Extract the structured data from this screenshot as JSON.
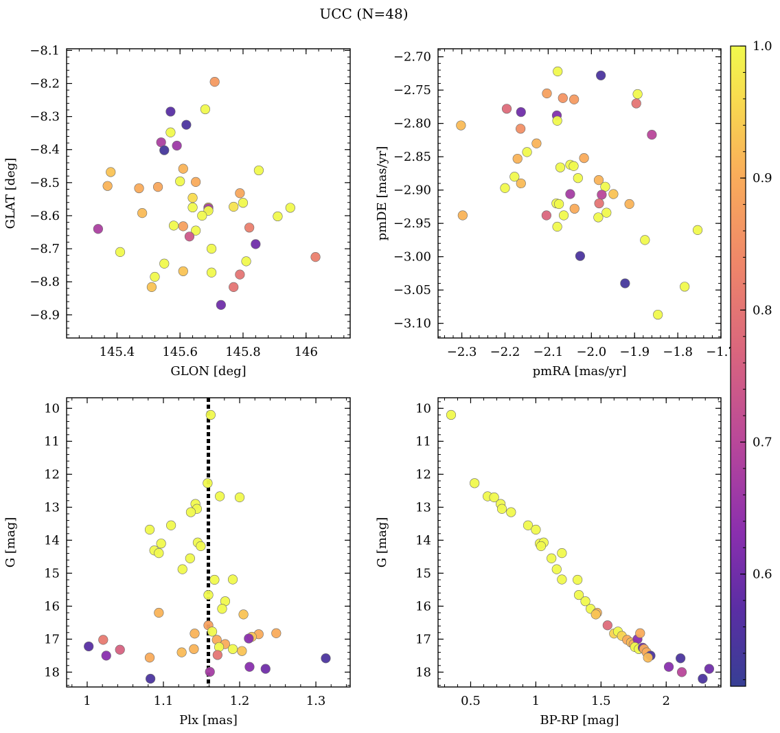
{
  "title": "UCC (N=48)",
  "chart_data": [
    {
      "type": "scatter",
      "xlabel": "GLON [deg]",
      "ylabel": "GLAT [deg]",
      "xlim": [
        145.24,
        146.14
      ],
      "ylim": [
        -8.97,
        -8.095
      ],
      "xticks": [
        145.4,
        145.6,
        145.8,
        146.0
      ],
      "yticks": [
        -8.9,
        -8.8,
        -8.7,
        -8.6,
        -8.5,
        -8.4,
        -8.3,
        -8.2,
        -8.1
      ],
      "points": [
        [
          145.71,
          -8.195,
          0.87
        ],
        [
          145.57,
          -8.285,
          0.57
        ],
        [
          145.62,
          -8.325,
          0.55
        ],
        [
          145.68,
          -8.278,
          1.0
        ],
        [
          145.57,
          -8.348,
          1.0
        ],
        [
          145.54,
          -8.378,
          0.68
        ],
        [
          145.59,
          -8.388,
          0.66
        ],
        [
          145.55,
          -8.402,
          0.54
        ],
        [
          145.38,
          -8.468,
          0.93
        ],
        [
          145.61,
          -8.458,
          0.91
        ],
        [
          145.85,
          -8.463,
          1.0
        ],
        [
          145.37,
          -8.51,
          0.91
        ],
        [
          145.47,
          -8.517,
          0.9
        ],
        [
          145.53,
          -8.513,
          0.89
        ],
        [
          145.6,
          -8.496,
          1.0
        ],
        [
          145.65,
          -8.498,
          0.9
        ],
        [
          145.79,
          -8.532,
          0.89
        ],
        [
          145.64,
          -8.546,
          0.96
        ],
        [
          145.48,
          -8.592,
          0.92
        ],
        [
          145.64,
          -8.575,
          1.0
        ],
        [
          145.69,
          -8.575,
          0.92
        ],
        [
          145.69,
          -8.578,
          0.67
        ],
        [
          145.69,
          -8.585,
          1.0
        ],
        [
          145.67,
          -8.6,
          1.0
        ],
        [
          145.77,
          -8.573,
          0.97
        ],
        [
          145.8,
          -8.561,
          1.0
        ],
        [
          145.95,
          -8.576,
          1.0
        ],
        [
          145.91,
          -8.602,
          1.0
        ],
        [
          145.34,
          -8.64,
          0.68
        ],
        [
          145.58,
          -8.63,
          1.0
        ],
        [
          145.61,
          -8.632,
          0.88
        ],
        [
          145.65,
          -8.645,
          1.0
        ],
        [
          145.63,
          -8.663,
          0.74
        ],
        [
          145.82,
          -8.636,
          0.82
        ],
        [
          145.41,
          -8.71,
          1.0
        ],
        [
          145.7,
          -8.7,
          1.0
        ],
        [
          145.84,
          -8.686,
          0.6
        ],
        [
          146.03,
          -8.725,
          0.82
        ],
        [
          145.55,
          -8.745,
          1.0
        ],
        [
          145.61,
          -8.768,
          0.93
        ],
        [
          145.7,
          -8.772,
          1.0
        ],
        [
          145.81,
          -8.738,
          1.0
        ],
        [
          145.79,
          -8.778,
          0.8
        ],
        [
          145.52,
          -8.785,
          1.0
        ],
        [
          145.51,
          -8.816,
          0.93
        ],
        [
          145.77,
          -8.816,
          0.8
        ],
        [
          145.73,
          -8.87,
          0.6
        ]
      ]
    },
    {
      "type": "scatter",
      "xlabel": "pmRA [mas/yr]",
      "ylabel": "pmDE [mas/yr]",
      "xlim": [
        -2.355,
        -1.7
      ],
      "ylim": [
        -3.122,
        -2.688
      ],
      "xticks": [
        -2.3,
        -2.2,
        -2.1,
        -2.0,
        -1.9,
        -1.8,
        -1.7
      ],
      "xtick_labels": [
        "−2.3",
        "−2.2",
        "−2.1",
        "−2.0",
        "−1.9",
        "−1.8",
        "−1.7"
      ],
      "yticks": [
        -3.1,
        -3.05,
        -3.0,
        -2.95,
        -2.9,
        -2.85,
        -2.8,
        -2.75,
        -2.7
      ],
      "ytick_labels": [
        "−3.10",
        "−3.05",
        "−3.00",
        "−2.95",
        "−2.90",
        "−2.85",
        "−2.80",
        "−2.75",
        "−2.70"
      ],
      "points": [
        [
          -2.078,
          -2.722,
          1.0
        ],
        [
          -1.978,
          -2.728,
          0.55
        ],
        [
          -1.893,
          -2.756,
          1.0
        ],
        [
          -2.103,
          -2.755,
          0.88
        ],
        [
          -2.066,
          -2.762,
          0.86
        ],
        [
          -2.04,
          -2.764,
          0.87
        ],
        [
          -1.896,
          -2.77,
          0.8
        ],
        [
          -2.196,
          -2.778,
          0.78
        ],
        [
          -2.163,
          -2.783,
          0.6
        ],
        [
          -2.08,
          -2.788,
          0.62
        ],
        [
          -2.079,
          -2.796,
          1.0
        ],
        [
          -2.302,
          -2.803,
          0.92
        ],
        [
          -2.164,
          -2.808,
          0.85
        ],
        [
          -1.86,
          -2.817,
          0.7
        ],
        [
          -2.127,
          -2.83,
          0.91
        ],
        [
          -2.149,
          -2.843,
          1.0
        ],
        [
          -2.017,
          -2.852,
          0.9
        ],
        [
          -2.171,
          -2.853,
          0.91
        ],
        [
          -2.049,
          -2.862,
          1.0
        ],
        [
          -2.072,
          -2.866,
          1.0
        ],
        [
          -2.041,
          -2.864,
          1.0
        ],
        [
          -2.178,
          -2.88,
          1.0
        ],
        [
          -2.031,
          -2.882,
          1.0
        ],
        [
          -1.983,
          -2.885,
          0.91
        ],
        [
          -2.163,
          -2.89,
          0.92
        ],
        [
          -2.2,
          -2.897,
          1.0
        ],
        [
          -1.968,
          -2.895,
          1.0
        ],
        [
          -2.049,
          -2.906,
          0.67
        ],
        [
          -1.976,
          -2.907,
          0.7
        ],
        [
          -1.949,
          -2.906,
          0.93
        ],
        [
          -2.081,
          -2.92,
          1.0
        ],
        [
          -2.075,
          -2.921,
          1.0
        ],
        [
          -1.982,
          -2.92,
          0.8
        ],
        [
          -1.912,
          -2.921,
          0.91
        ],
        [
          -2.039,
          -2.928,
          0.9
        ],
        [
          -1.965,
          -2.934,
          1.0
        ],
        [
          -2.298,
          -2.938,
          0.91
        ],
        [
          -2.104,
          -2.938,
          0.77
        ],
        [
          -2.064,
          -2.938,
          1.0
        ],
        [
          -1.984,
          -2.941,
          1.0
        ],
        [
          -2.079,
          -2.955,
          1.0
        ],
        [
          -1.754,
          -2.96,
          1.0
        ],
        [
          -1.876,
          -2.975,
          1.0
        ],
        [
          -2.026,
          -2.999,
          0.55
        ],
        [
          -1.922,
          -3.04,
          0.54
        ],
        [
          -1.784,
          -3.045,
          1.0
        ],
        [
          -1.846,
          -3.087,
          1.0
        ]
      ]
    },
    {
      "type": "scatter",
      "xlabel": "Plx [mas]",
      "ylabel": "G [mag]",
      "xlim": [
        0.973,
        1.345
      ],
      "ylim": [
        18.45,
        9.68
      ],
      "xticks": [
        1.0,
        1.1,
        1.2,
        1.3
      ],
      "yticks": [
        10,
        11,
        12,
        13,
        14,
        15,
        16,
        17,
        18
      ],
      "vline": 1.159,
      "points": [
        [
          1.162,
          10.2,
          1.0
        ],
        [
          1.158,
          12.27,
          1.0
        ],
        [
          1.174,
          12.67,
          1.0
        ],
        [
          1.2,
          12.7,
          1.0
        ],
        [
          1.142,
          12.9,
          1.0
        ],
        [
          1.144,
          13.05,
          1.0
        ],
        [
          1.136,
          13.15,
          1.0
        ],
        [
          1.11,
          13.55,
          1.0
        ],
        [
          1.082,
          13.68,
          1.0
        ],
        [
          1.097,
          14.1,
          1.0
        ],
        [
          1.145,
          14.07,
          1.0
        ],
        [
          1.149,
          14.18,
          1.0
        ],
        [
          1.088,
          14.31,
          1.0
        ],
        [
          1.094,
          14.39,
          1.0
        ],
        [
          1.135,
          14.55,
          1.0
        ],
        [
          1.125,
          14.88,
          1.0
        ],
        [
          1.191,
          15.19,
          1.0
        ],
        [
          1.167,
          15.2,
          1.0
        ],
        [
          1.159,
          15.66,
          1.0
        ],
        [
          1.181,
          15.85,
          1.0
        ],
        [
          1.177,
          16.08,
          1.0
        ],
        [
          1.094,
          16.2,
          0.91
        ],
        [
          1.205,
          16.25,
          0.93
        ],
        [
          1.159,
          16.58,
          0.88
        ],
        [
          1.141,
          16.83,
          0.91
        ],
        [
          1.164,
          16.77,
          1.0
        ],
        [
          1.225,
          16.85,
          0.9
        ],
        [
          1.248,
          16.82,
          0.9
        ],
        [
          1.216,
          16.93,
          0.93
        ],
        [
          1.17,
          17.02,
          0.9
        ],
        [
          1.021,
          17.02,
          0.81
        ],
        [
          1.212,
          16.98,
          0.63
        ],
        [
          1.181,
          17.15,
          0.9
        ],
        [
          1.173,
          17.24,
          1.0
        ],
        [
          1.002,
          17.22,
          0.57
        ],
        [
          1.191,
          17.3,
          1.0
        ],
        [
          1.043,
          17.32,
          0.76
        ],
        [
          1.14,
          17.3,
          0.91
        ],
        [
          1.124,
          17.4,
          0.92
        ],
        [
          1.203,
          17.36,
          0.93
        ],
        [
          1.025,
          17.5,
          0.63
        ],
        [
          1.082,
          17.56,
          0.9
        ],
        [
          1.171,
          17.48,
          0.8
        ],
        [
          1.313,
          17.58,
          0.55
        ],
        [
          1.213,
          17.84,
          0.63
        ],
        [
          1.234,
          17.9,
          0.6
        ],
        [
          1.161,
          17.99,
          0.67
        ],
        [
          1.083,
          18.2,
          0.55
        ]
      ]
    },
    {
      "type": "scatter",
      "xlabel": "BP-RP [mag]",
      "ylabel": "G [mag]",
      "xlim": [
        0.25,
        2.42
      ],
      "ylim": [
        18.45,
        9.68
      ],
      "xticks": [
        0.5,
        1.0,
        1.5,
        2.0
      ],
      "yticks": [
        10,
        11,
        12,
        13,
        14,
        15,
        16,
        17,
        18
      ],
      "points": [
        [
          0.35,
          10.2,
          1.0
        ],
        [
          0.53,
          12.27,
          1.0
        ],
        [
          0.63,
          12.67,
          1.0
        ],
        [
          0.68,
          12.7,
          1.0
        ],
        [
          0.73,
          12.9,
          1.0
        ],
        [
          0.74,
          13.05,
          1.0
        ],
        [
          0.81,
          13.15,
          1.0
        ],
        [
          0.94,
          13.55,
          1.0
        ],
        [
          1.0,
          13.68,
          1.0
        ],
        [
          1.03,
          14.1,
          1.0
        ],
        [
          1.06,
          14.07,
          1.0
        ],
        [
          1.04,
          14.18,
          1.0
        ],
        [
          1.2,
          14.39,
          1.0
        ],
        [
          1.12,
          14.55,
          1.0
        ],
        [
          1.16,
          14.88,
          1.0
        ],
        [
          1.2,
          15.19,
          1.0
        ],
        [
          1.32,
          15.2,
          1.0
        ],
        [
          1.33,
          15.66,
          1.0
        ],
        [
          1.38,
          15.85,
          1.0
        ],
        [
          1.42,
          16.08,
          1.0
        ],
        [
          1.47,
          16.2,
          0.91
        ],
        [
          1.46,
          16.25,
          0.93
        ],
        [
          1.55,
          16.58,
          0.78
        ],
        [
          1.6,
          16.83,
          0.95
        ],
        [
          1.63,
          16.77,
          1.0
        ],
        [
          1.66,
          16.9,
          0.95
        ],
        [
          1.7,
          17.02,
          0.9
        ],
        [
          1.73,
          17.1,
          0.92
        ],
        [
          1.75,
          17.15,
          0.9
        ],
        [
          1.78,
          17.0,
          0.63
        ],
        [
          1.8,
          16.82,
          0.9
        ],
        [
          1.76,
          17.24,
          1.0
        ],
        [
          1.79,
          17.3,
          1.0
        ],
        [
          1.82,
          17.26,
          0.6
        ],
        [
          1.83,
          17.3,
          0.9
        ],
        [
          1.85,
          17.4,
          0.9
        ],
        [
          1.88,
          17.5,
          0.55
        ],
        [
          1.86,
          17.56,
          0.92
        ],
        [
          2.11,
          17.58,
          0.55
        ],
        [
          2.02,
          17.84,
          0.63
        ],
        [
          2.12,
          18.0,
          0.7
        ],
        [
          2.28,
          18.2,
          0.55
        ],
        [
          2.33,
          17.9,
          0.6
        ]
      ]
    }
  ],
  "colorbar": {
    "cmap": "plasma",
    "min": 0.515,
    "max": 1.0,
    "ticks": [
      0.6,
      0.7,
      0.8,
      0.9,
      1.0
    ]
  }
}
